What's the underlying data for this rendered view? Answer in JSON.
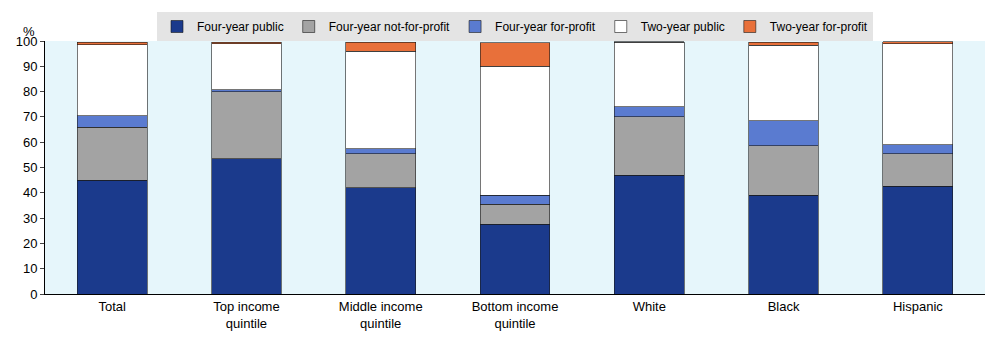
{
  "chart_data": {
    "type": "bar",
    "stacked": true,
    "y_label": "%",
    "categories": [
      "Total",
      "Top income quintile",
      "Middle income quintile",
      "Bottom income quintile",
      "White",
      "Black",
      "Hispanic"
    ],
    "series": [
      {
        "name": "Four-year public",
        "color": "#1b3a8c",
        "values": [
          45,
          53.5,
          42,
          27.5,
          47,
          39,
          42.5
        ]
      },
      {
        "name": "Four-year not-for-profit",
        "color": "#a3a3a3",
        "values": [
          21,
          26.5,
          13.5,
          8,
          23,
          19.5,
          13
        ]
      },
      {
        "name": "Four-year for-profit",
        "color": "#5a7bd0",
        "values": [
          4.5,
          0.8,
          2,
          3.5,
          4,
          10,
          3.5
        ]
      },
      {
        "name": "Two-year public",
        "color": "#ffffff",
        "values": [
          28,
          18.2,
          38.5,
          51,
          25.5,
          29.8,
          40
        ]
      },
      {
        "name": "Two-year for-profit",
        "color": "#e8703a",
        "values": [
          1,
          0.5,
          3.5,
          9.3,
          0.3,
          1.2,
          0.8
        ]
      }
    ],
    "ylim": [
      0,
      100
    ],
    "yticks": [
      0,
      10,
      20,
      30,
      40,
      50,
      60,
      70,
      80,
      90,
      100
    ],
    "grid": false,
    "legend": "top"
  }
}
